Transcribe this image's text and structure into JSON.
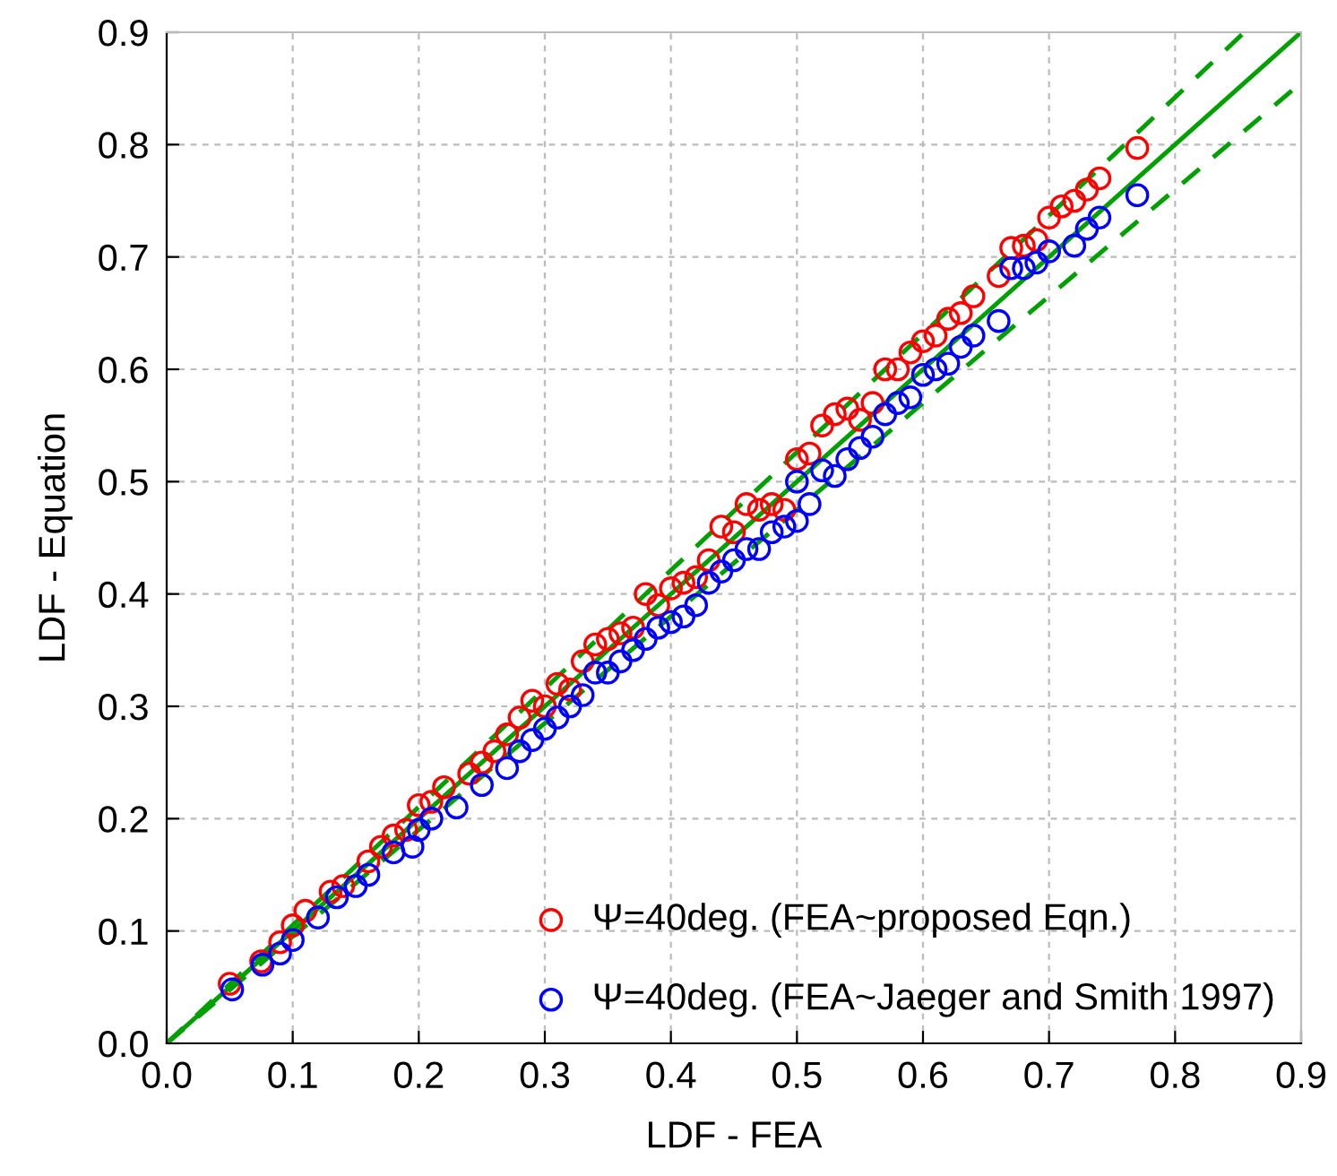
{
  "chart_data": {
    "type": "scatter",
    "xlabel": "LDF - FEA",
    "ylabel": "LDF - Equation",
    "xlim": [
      0,
      0.9
    ],
    "ylim": [
      0,
      0.9
    ],
    "xticks": [
      {
        "value": 0,
        "label": "0.0"
      },
      0.1,
      0.2,
      0.3,
      0.4,
      0.5,
      0.6,
      0.7,
      0.8,
      0.9
    ],
    "yticks": [
      {
        "value": 0,
        "label": "0.0"
      },
      0.1,
      0.2,
      0.3,
      0.4,
      0.5,
      0.6,
      0.7,
      0.8,
      0.9
    ],
    "grid": true,
    "legend": "bottom right",
    "marker": "circle",
    "series": [
      {
        "name": "Ψ=40deg. (FEA~proposed Eqn.)",
        "color": "#ff0000",
        "x": [
          0.05,
          0.075,
          0.09,
          0.1,
          0.11,
          0.13,
          0.14,
          0.16,
          0.17,
          0.18,
          0.19,
          0.2,
          0.21,
          0.22,
          0.24,
          0.25,
          0.26,
          0.27,
          0.28,
          0.29,
          0.3,
          0.31,
          0.32,
          0.33,
          0.34,
          0.35,
          0.36,
          0.37,
          0.38,
          0.39,
          0.4,
          0.41,
          0.42,
          0.43,
          0.44,
          0.45,
          0.46,
          0.47,
          0.48,
          0.49,
          0.5,
          0.51,
          0.52,
          0.53,
          0.54,
          0.55,
          0.56,
          0.57,
          0.58,
          0.59,
          0.6,
          0.61,
          0.62,
          0.63,
          0.64,
          0.66,
          0.67,
          0.68,
          0.69,
          0.7,
          0.71,
          0.72,
          0.73,
          0.74,
          0.77
        ],
        "values": [
          0.053,
          0.073,
          0.09,
          0.105,
          0.118,
          0.135,
          0.14,
          0.162,
          0.175,
          0.185,
          0.19,
          0.212,
          0.215,
          0.228,
          0.24,
          0.25,
          0.26,
          0.275,
          0.29,
          0.305,
          0.3,
          0.32,
          0.315,
          0.34,
          0.355,
          0.36,
          0.365,
          0.37,
          0.4,
          0.39,
          0.405,
          0.41,
          0.415,
          0.43,
          0.46,
          0.455,
          0.48,
          0.475,
          0.48,
          0.475,
          0.52,
          0.525,
          0.55,
          0.56,
          0.565,
          0.555,
          0.57,
          0.6,
          0.6,
          0.615,
          0.625,
          0.63,
          0.645,
          0.65,
          0.665,
          0.683,
          0.708,
          0.71,
          0.715,
          0.735,
          0.745,
          0.75,
          0.76,
          0.77,
          0.797
        ]
      },
      {
        "name": "Ψ=40deg. (FEA~Jaeger and Smith 1997)",
        "color": "#0000ff",
        "x": [
          0.052,
          0.076,
          0.09,
          0.1,
          0.12,
          0.135,
          0.15,
          0.16,
          0.18,
          0.195,
          0.2,
          0.21,
          0.23,
          0.25,
          0.27,
          0.28,
          0.29,
          0.3,
          0.31,
          0.32,
          0.33,
          0.34,
          0.35,
          0.36,
          0.37,
          0.38,
          0.39,
          0.4,
          0.41,
          0.42,
          0.43,
          0.44,
          0.45,
          0.46,
          0.47,
          0.48,
          0.49,
          0.5,
          0.5,
          0.51,
          0.52,
          0.53,
          0.54,
          0.55,
          0.56,
          0.57,
          0.58,
          0.59,
          0.6,
          0.61,
          0.62,
          0.63,
          0.64,
          0.66,
          0.67,
          0.68,
          0.69,
          0.7,
          0.72,
          0.73,
          0.74,
          0.77
        ],
        "values": [
          0.048,
          0.07,
          0.08,
          0.092,
          0.112,
          0.13,
          0.14,
          0.15,
          0.17,
          0.175,
          0.19,
          0.2,
          0.21,
          0.23,
          0.245,
          0.26,
          0.27,
          0.28,
          0.29,
          0.3,
          0.31,
          0.33,
          0.33,
          0.34,
          0.35,
          0.36,
          0.37,
          0.375,
          0.38,
          0.39,
          0.41,
          0.42,
          0.43,
          0.44,
          0.44,
          0.455,
          0.46,
          0.465,
          0.5,
          0.48,
          0.51,
          0.505,
          0.52,
          0.53,
          0.54,
          0.56,
          0.57,
          0.575,
          0.595,
          0.6,
          0.605,
          0.62,
          0.63,
          0.643,
          0.69,
          0.69,
          0.695,
          0.705,
          0.71,
          0.725,
          0.735,
          0.755
        ]
      },
      {
        "type": "line",
        "color": "#00a000",
        "line_style": "solid",
        "marker": "none",
        "x": [
          0,
          0.9
        ],
        "values": [
          0,
          0.9
        ]
      },
      {
        "type": "line",
        "color": "#00a000",
        "line_style": "dashed",
        "marker": "none",
        "x": [
          0,
          0.855
        ],
        "values": [
          0,
          0.9
        ]
      },
      {
        "type": "line",
        "color": "#00a000",
        "line_style": "dashed",
        "marker": "none",
        "x": [
          0,
          0.9
        ],
        "values": [
          0,
          0.855
        ]
      }
    ]
  }
}
